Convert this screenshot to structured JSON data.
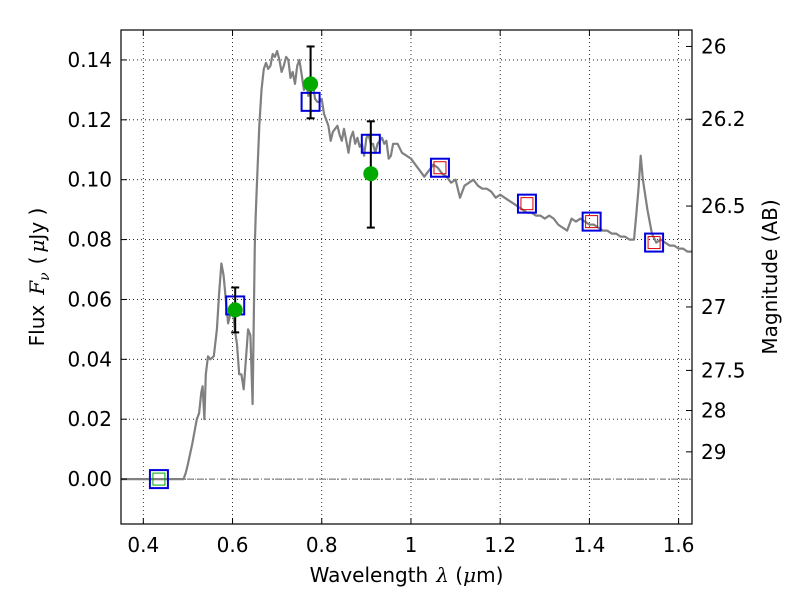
{
  "chart_data": {
    "type": "line",
    "xlabel": {
      "prefix": "Wavelength",
      "symbol": "λ",
      "unit_open": " (",
      "unit_mu": "μ",
      "unit_rest": "m)"
    },
    "ylabel": {
      "prefix": "Flux",
      "symbol": "F",
      "subscript": "ν",
      "unit_open": "(",
      "unit_mu": "μ",
      "unit_rest": "Jy )"
    },
    "y2label": "Magnitude (AB)",
    "xlim": [
      0.35,
      1.63
    ],
    "ylim": [
      -0.015,
      0.15
    ],
    "grid": true,
    "x_ticks": [
      {
        "value": 0.4,
        "label": "0.4"
      },
      {
        "value": 0.6,
        "label": "0.6"
      },
      {
        "value": 0.8,
        "label": "0.8"
      },
      {
        "value": 1.0,
        "label": "1"
      },
      {
        "value": 1.2,
        "label": "1.2"
      },
      {
        "value": 1.4,
        "label": "1.4"
      },
      {
        "value": 1.6,
        "label": "1.6"
      }
    ],
    "y_ticks": [
      {
        "value": 0.0,
        "label": "0.00"
      },
      {
        "value": 0.02,
        "label": "0.02"
      },
      {
        "value": 0.04,
        "label": "0.04"
      },
      {
        "value": 0.06,
        "label": "0.06"
      },
      {
        "value": 0.08,
        "label": "0.08"
      },
      {
        "value": 0.1,
        "label": "0.10"
      },
      {
        "value": 0.12,
        "label": "0.12"
      },
      {
        "value": 0.14,
        "label": "0.14"
      }
    ],
    "y2_ticks": [
      {
        "label": "26",
        "flux": 0.1445
      },
      {
        "label": "26.2",
        "flux": 0.1202
      },
      {
        "label": "26.5",
        "flux": 0.0912
      },
      {
        "label": "27",
        "flux": 0.0575
      },
      {
        "label": "27.5",
        "flux": 0.0363
      },
      {
        "label": "28",
        "flux": 0.0229
      },
      {
        "label": "29",
        "flux": 0.0091
      }
    ],
    "zero_line": 0.0,
    "colors": {
      "model": "#808080",
      "observed": "#00aa00",
      "model_boxes": "#0000dd",
      "inner_boxes": "#dd0000",
      "errorbars": "#000000"
    },
    "series": [
      {
        "type": "line",
        "x": [
          0.35,
          0.49,
          0.495,
          0.5,
          0.51,
          0.52,
          0.525,
          0.53,
          0.533,
          0.537,
          0.54,
          0.545,
          0.55,
          0.558,
          0.565,
          0.57,
          0.575,
          0.58,
          0.585,
          0.59,
          0.595,
          0.6,
          0.605,
          0.61,
          0.615,
          0.62,
          0.625,
          0.63,
          0.635,
          0.64,
          0.645,
          0.65,
          0.652,
          0.655,
          0.66,
          0.665,
          0.67,
          0.675,
          0.68,
          0.685,
          0.69,
          0.695,
          0.7,
          0.705,
          0.71,
          0.715,
          0.72,
          0.725,
          0.73,
          0.735,
          0.74,
          0.745,
          0.75,
          0.755,
          0.76,
          0.765,
          0.77,
          0.775,
          0.78,
          0.785,
          0.79,
          0.795,
          0.8,
          0.805,
          0.81,
          0.815,
          0.82,
          0.825,
          0.83,
          0.835,
          0.84,
          0.845,
          0.85,
          0.855,
          0.86,
          0.865,
          0.87,
          0.875,
          0.88,
          0.885,
          0.89,
          0.895,
          0.9,
          0.905,
          0.91,
          0.915,
          0.92,
          0.925,
          0.93,
          0.935,
          0.94,
          0.945,
          0.95,
          0.955,
          0.96,
          0.97,
          0.98,
          0.99,
          1.0,
          1.01,
          1.02,
          1.03,
          1.04,
          1.05,
          1.06,
          1.07,
          1.08,
          1.09,
          1.1,
          1.11,
          1.12,
          1.13,
          1.14,
          1.15,
          1.16,
          1.17,
          1.18,
          1.19,
          1.2,
          1.21,
          1.22,
          1.23,
          1.24,
          1.25,
          1.26,
          1.27,
          1.28,
          1.29,
          1.3,
          1.31,
          1.32,
          1.33,
          1.34,
          1.35,
          1.36,
          1.37,
          1.38,
          1.39,
          1.4,
          1.41,
          1.42,
          1.43,
          1.44,
          1.45,
          1.46,
          1.47,
          1.48,
          1.49,
          1.5,
          1.505,
          1.51,
          1.515,
          1.52,
          1.53,
          1.54,
          1.55,
          1.56,
          1.57,
          1.58,
          1.59,
          1.6,
          1.61,
          1.62,
          1.63
        ],
        "y": [
          0.0,
          0.0,
          0.002,
          0.005,
          0.012,
          0.02,
          0.022,
          0.029,
          0.031,
          0.02,
          0.035,
          0.041,
          0.04,
          0.041,
          0.05,
          0.062,
          0.072,
          0.068,
          0.06,
          0.052,
          0.055,
          0.058,
          0.05,
          0.045,
          0.035,
          0.035,
          0.03,
          0.04,
          0.05,
          0.048,
          0.025,
          0.078,
          0.088,
          0.1,
          0.118,
          0.13,
          0.137,
          0.139,
          0.137,
          0.138,
          0.142,
          0.141,
          0.143,
          0.14,
          0.136,
          0.138,
          0.141,
          0.14,
          0.134,
          0.136,
          0.132,
          0.138,
          0.14,
          0.135,
          0.13,
          0.133,
          0.128,
          0.129,
          0.132,
          0.127,
          0.126,
          0.126,
          0.127,
          0.122,
          0.12,
          0.118,
          0.113,
          0.116,
          0.117,
          0.118,
          0.115,
          0.113,
          0.117,
          0.113,
          0.109,
          0.114,
          0.116,
          0.112,
          0.114,
          0.111,
          0.112,
          0.108,
          0.114,
          0.115,
          0.112,
          0.112,
          0.109,
          0.112,
          0.113,
          0.114,
          0.112,
          0.113,
          0.107,
          0.108,
          0.112,
          0.112,
          0.109,
          0.108,
          0.107,
          0.105,
          0.103,
          0.101,
          0.103,
          0.105,
          0.104,
          0.102,
          0.101,
          0.099,
          0.1,
          0.094,
          0.098,
          0.099,
          0.1,
          0.098,
          0.097,
          0.097,
          0.096,
          0.094,
          0.095,
          0.094,
          0.093,
          0.092,
          0.091,
          0.09,
          0.089,
          0.089,
          0.088,
          0.088,
          0.087,
          0.088,
          0.087,
          0.085,
          0.084,
          0.083,
          0.087,
          0.086,
          0.087,
          0.086,
          0.085,
          0.085,
          0.084,
          0.083,
          0.083,
          0.082,
          0.082,
          0.081,
          0.081,
          0.08,
          0.08,
          0.088,
          0.097,
          0.108,
          0.1,
          0.09,
          0.082,
          0.079,
          0.08,
          0.079,
          0.078,
          0.078,
          0.077,
          0.077,
          0.076,
          0.076
        ]
      },
      {
        "type": "scatter",
        "marker": "square",
        "x": [
          0.435,
          0.606,
          0.775,
          0.91,
          1.065,
          1.26,
          1.405,
          1.545
        ],
        "y": [
          0.0,
          0.058,
          0.126,
          0.112,
          0.104,
          0.092,
          0.086,
          0.079
        ]
      },
      {
        "type": "scatter",
        "marker": "small-square",
        "x": [
          0.435,
          1.065,
          1.26,
          1.405,
          1.545
        ],
        "y": [
          0.0,
          0.104,
          0.092,
          0.086,
          0.079
        ]
      },
      {
        "type": "scatter",
        "marker": "circle",
        "x": [
          0.606,
          0.775,
          0.91
        ],
        "y": [
          0.0565,
          0.132,
          0.102
        ],
        "yerr_low": [
          0.049,
          0.1205,
          0.084
        ],
        "yerr_high": [
          0.064,
          0.1445,
          0.1195
        ]
      }
    ]
  }
}
